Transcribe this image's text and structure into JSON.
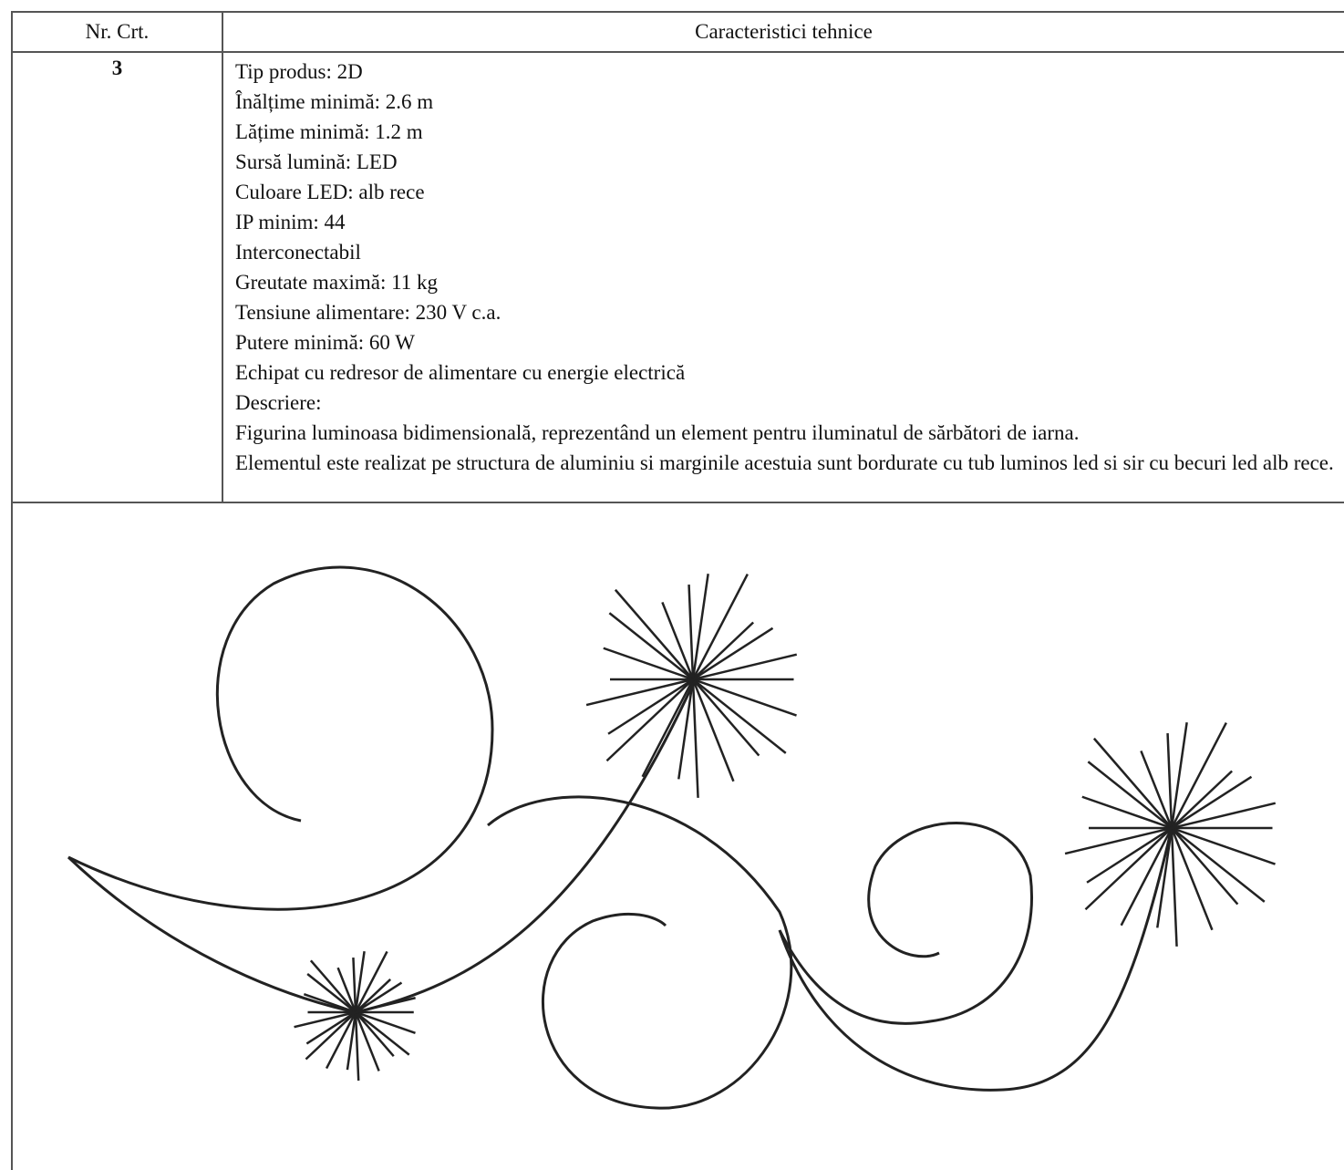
{
  "table": {
    "header": [
      "Nr. Crt.",
      "Caracteristici tehnice"
    ],
    "rows": [
      {
        "nr": "3",
        "lines": [
          "Tip produs: 2D",
          "Înălțime minimă: 2.6 m",
          "Lățime minimă: 1.2 m",
          "Sursă lumină: LED",
          "Culoare LED: alb rece",
          "IP minim: 44",
          "Interconectabil",
          "Greutate maximă: 11 kg",
          "Tensiune alimentare: 230 V c.a.",
          "Putere minimă: 60 W",
          "Echipat cu redresor de alimentare cu energie electrică",
          "Descriere:",
          "Figurina luminoasa bidimensională, reprezentând un element pentru iluminatul de sărbători de iarna.",
          "Elementul este realizat pe structura de aluminiu si marginile acestuia sunt bordurate cu tub luminos led si sir cu becuri led alb rece."
        ]
      }
    ]
  }
}
